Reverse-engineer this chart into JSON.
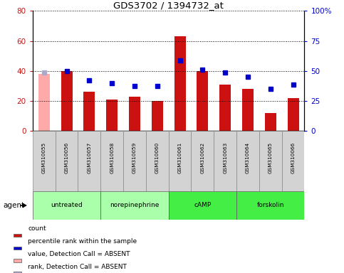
{
  "title": "GDS3702 / 1394732_at",
  "samples": [
    "GSM310055",
    "GSM310056",
    "GSM310057",
    "GSM310058",
    "GSM310059",
    "GSM310060",
    "GSM310061",
    "GSM310062",
    "GSM310063",
    "GSM310064",
    "GSM310065",
    "GSM310066"
  ],
  "bar_values": [
    38,
    40,
    26,
    21,
    23,
    20,
    63,
    40,
    31,
    28,
    12,
    22
  ],
  "bar_absent": [
    true,
    false,
    false,
    false,
    false,
    false,
    false,
    false,
    false,
    false,
    false,
    false
  ],
  "rank_values": [
    39,
    40,
    34,
    32,
    30,
    30,
    47,
    41,
    39,
    36,
    28,
    31
  ],
  "rank_absent": [
    true,
    false,
    false,
    false,
    false,
    false,
    false,
    false,
    false,
    false,
    false,
    false
  ],
  "bar_color_normal": "#cc1111",
  "bar_color_absent": "#ffaaaa",
  "rank_color_normal": "#0000cc",
  "rank_color_absent": "#aaaacc",
  "ylim_left": [
    0,
    80
  ],
  "ylim_right": [
    0,
    100
  ],
  "yticks_left": [
    0,
    20,
    40,
    60,
    80
  ],
  "yticks_right": [
    0,
    25,
    50,
    75,
    100
  ],
  "ytick_labels_left": [
    "0",
    "20",
    "40",
    "60",
    "80"
  ],
  "ytick_labels_right": [
    "0",
    "25",
    "50",
    "75",
    "100%"
  ],
  "agent_groups": [
    {
      "label": "untreated",
      "start": 0,
      "end": 3
    },
    {
      "label": "norepinephrine",
      "start": 3,
      "end": 6
    },
    {
      "label": "cAMP",
      "start": 6,
      "end": 9
    },
    {
      "label": "forskolin",
      "start": 9,
      "end": 12
    }
  ],
  "agent_group_colors": [
    "#aaffaa",
    "#aaffaa",
    "#44ee44",
    "#44ee44"
  ],
  "legend_items": [
    {
      "label": "count",
      "color": "#cc1111"
    },
    {
      "label": "percentile rank within the sample",
      "color": "#0000cc"
    },
    {
      "label": "value, Detection Call = ABSENT",
      "color": "#ffaaaa"
    },
    {
      "label": "rank, Detection Call = ABSENT",
      "color": "#aaaacc"
    }
  ],
  "agent_label": "agent",
  "bar_width": 0.5,
  "fig_width": 4.83,
  "fig_height": 3.84,
  "fig_dpi": 100
}
